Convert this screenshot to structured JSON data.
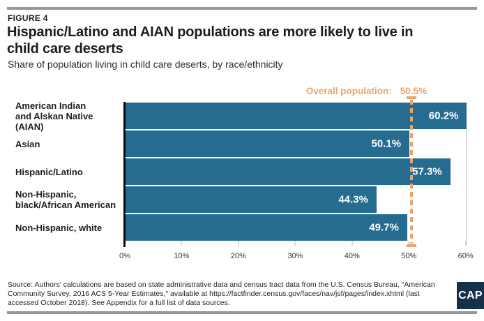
{
  "figure": {
    "kicker": "FIGURE 4",
    "title": "Hispanic/Latino and AIAN populations are more likely to live in\nchild care deserts",
    "subtitle": "Share of population living in child care deserts, by race/ethnicity"
  },
  "chart_data": {
    "type": "bar",
    "orientation": "horizontal",
    "categories": [
      "American Indian\nand Alskan Native (AIAN)",
      "Asian",
      "Hispanic/Latino",
      "Non-Hispanic,\nblack/African American",
      "Non-Hispanic, white"
    ],
    "values": [
      60.2,
      50.1,
      57.3,
      44.3,
      49.7
    ],
    "value_labels": [
      "60.2%",
      "50.1%",
      "57.3%",
      "44.3%",
      "49.7%"
    ],
    "bar_color": "#266c90",
    "value_label_color": "#ffffff",
    "xlim": [
      0,
      62
    ],
    "x_ticks": [
      "0%",
      "10%",
      "20%",
      "30%",
      "40%",
      "50%",
      "60%"
    ],
    "x_tick_values": [
      0,
      10,
      20,
      30,
      40,
      50,
      60
    ],
    "grid": "single vertical gridline at 60%",
    "legend": "none",
    "reference_line": {
      "label": "Overall population:",
      "value": 50.5,
      "value_label": "50.5%",
      "style": "dashed-vertical-with-end-caps",
      "color": "#eaa469"
    }
  },
  "footer": {
    "source": "Source: Authors' calculations are based on state administrative data and census tract data from the U.S. Census Bureau, \"American Community Survey, 2016 ACS 5-Year Estimates,\" available at https://factfinder.census.gov/faces/nav/jsf/pages/index.xhtml (last accessed October 2018). See Appendix for a full list of data sources.",
    "logo_text": "CAP"
  },
  "colors": {
    "bar": "#266c90",
    "accent_orange": "#eaa469",
    "rule_gray": "#95979a",
    "logo_navy": "#17304a",
    "axis_black": "#0a0a0a",
    "gridline_gray": "#c9c9c9"
  }
}
